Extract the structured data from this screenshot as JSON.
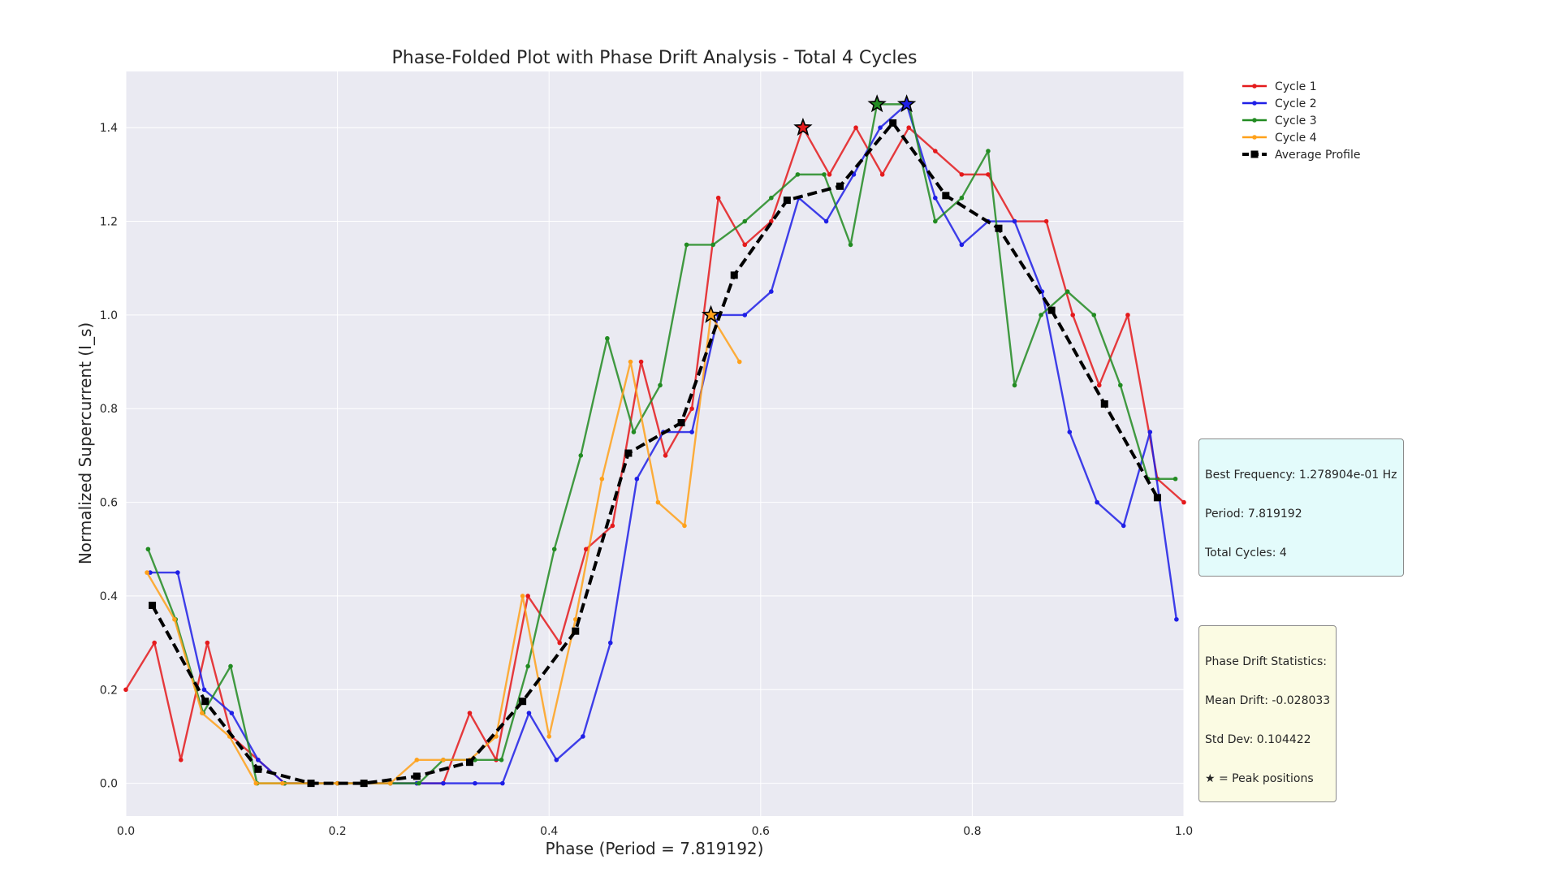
{
  "chart_data": {
    "type": "line",
    "title": "Phase-Folded Plot with Phase Drift Analysis - Total 4 Cycles",
    "xlabel": "Phase (Period = 7.819192)",
    "ylabel": "Normalized Supercurrent (I_s)",
    "xlim": [
      0.0,
      1.0
    ],
    "ylim": [
      -0.07,
      1.52
    ],
    "xticks": [
      0.0,
      0.2,
      0.4,
      0.6,
      0.8,
      1.0
    ],
    "xtick_labels": [
      "0.0",
      "0.2",
      "0.4",
      "0.6",
      "0.8",
      "1.0"
    ],
    "yticks": [
      0.0,
      0.2,
      0.4,
      0.6,
      0.8,
      1.0,
      1.2,
      1.4
    ],
    "ytick_labels": [
      "0.0",
      "0.2",
      "0.4",
      "0.6",
      "0.8",
      "1.0",
      "1.2",
      "1.4"
    ],
    "grid": true,
    "legend_position": "top-right, outside plot",
    "series": [
      {
        "name": "Cycle 1",
        "color": "#e41a1c",
        "style": "solid-dot",
        "x": [
          0.0,
          0.027,
          0.052,
          0.077,
          0.1,
          0.125,
          0.15,
          0.175,
          0.2,
          0.225,
          0.25,
          0.275,
          0.3,
          0.325,
          0.35,
          0.38,
          0.41,
          0.435,
          0.46,
          0.487,
          0.51,
          0.535,
          0.56,
          0.585,
          0.61,
          0.64,
          0.665,
          0.69,
          0.715,
          0.74,
          0.765,
          0.79,
          0.815,
          0.84,
          0.87,
          0.895,
          0.92,
          0.947,
          0.975,
          1.0
        ],
        "y": [
          0.2,
          0.3,
          0.05,
          0.3,
          0.1,
          0.05,
          0.0,
          0.0,
          0.0,
          0.0,
          0.0,
          0.0,
          0.0,
          0.15,
          0.05,
          0.4,
          0.3,
          0.5,
          0.55,
          0.9,
          0.7,
          0.8,
          1.25,
          1.15,
          1.2,
          1.4,
          1.3,
          1.4,
          1.3,
          1.4,
          1.35,
          1.3,
          1.3,
          1.2,
          1.2,
          1.0,
          0.85,
          1.0,
          0.65,
          0.6
        ]
      },
      {
        "name": "Cycle 2",
        "color": "#1f1fe6",
        "style": "solid-dot",
        "x": [
          0.023,
          0.049,
          0.074,
          0.1,
          0.125,
          0.15,
          0.175,
          0.2,
          0.225,
          0.25,
          0.275,
          0.3,
          0.33,
          0.356,
          0.381,
          0.407,
          0.432,
          0.458,
          0.483,
          0.508,
          0.535,
          0.56,
          0.585,
          0.61,
          0.636,
          0.662,
          0.688,
          0.713,
          0.738,
          0.765,
          0.79,
          0.815,
          0.84,
          0.866,
          0.892,
          0.918,
          0.943,
          0.968,
          0.993
        ],
        "y": [
          0.45,
          0.45,
          0.2,
          0.15,
          0.05,
          0.0,
          0.0,
          0.0,
          0.0,
          0.0,
          0.0,
          0.0,
          0.0,
          0.0,
          0.15,
          0.05,
          0.1,
          0.3,
          0.65,
          0.75,
          0.75,
          1.0,
          1.0,
          1.05,
          1.25,
          1.2,
          1.3,
          1.4,
          1.45,
          1.25,
          1.15,
          1.2,
          1.2,
          1.05,
          0.75,
          0.6,
          0.55,
          0.75,
          0.35
        ]
      },
      {
        "name": "Cycle 3",
        "color": "#228b22",
        "style": "solid-dot",
        "x": [
          0.021,
          0.047,
          0.073,
          0.099,
          0.124,
          0.15,
          0.176,
          0.2,
          0.225,
          0.25,
          0.277,
          0.3,
          0.33,
          0.355,
          0.38,
          0.405,
          0.43,
          0.455,
          0.48,
          0.505,
          0.53,
          0.555,
          0.585,
          0.61,
          0.635,
          0.66,
          0.685,
          0.71,
          0.74,
          0.765,
          0.79,
          0.815,
          0.84,
          0.865,
          0.89,
          0.915,
          0.94,
          0.966,
          0.992
        ],
        "y": [
          0.5,
          0.35,
          0.15,
          0.25,
          0.0,
          0.0,
          0.0,
          0.0,
          0.0,
          0.0,
          0.0,
          0.05,
          0.05,
          0.05,
          0.25,
          0.5,
          0.7,
          0.95,
          0.75,
          0.85,
          1.15,
          1.15,
          1.2,
          1.25,
          1.3,
          1.3,
          1.15,
          1.45,
          1.45,
          1.2,
          1.25,
          1.35,
          0.85,
          1.0,
          1.05,
          1.0,
          0.85,
          0.65,
          0.65
        ]
      },
      {
        "name": "Cycle 4",
        "color": "#ffa11a",
        "style": "solid-dot",
        "x": [
          0.02,
          0.046,
          0.072,
          0.098,
          0.123,
          0.148,
          0.173,
          0.2,
          0.225,
          0.25,
          0.275,
          0.3,
          0.325,
          0.35,
          0.375,
          0.4,
          0.425,
          0.45,
          0.477,
          0.503,
          0.528,
          0.553,
          0.58
        ],
        "y": [
          0.45,
          0.35,
          0.15,
          0.1,
          0.0,
          0.0,
          0.0,
          0.0,
          0.0,
          0.0,
          0.05,
          0.05,
          0.05,
          0.1,
          0.4,
          0.1,
          0.35,
          0.65,
          0.9,
          0.6,
          0.55,
          1.0,
          0.9
        ]
      },
      {
        "name": "Average Profile",
        "color": "#000000",
        "style": "dashed-square",
        "x": [
          0.025,
          0.075,
          0.125,
          0.175,
          0.225,
          0.275,
          0.325,
          0.375,
          0.425,
          0.475,
          0.525,
          0.575,
          0.625,
          0.675,
          0.725,
          0.775,
          0.825,
          0.875,
          0.925,
          0.975
        ],
        "y": [
          0.38,
          0.175,
          0.03,
          0.0,
          0.0,
          0.015,
          0.045,
          0.175,
          0.325,
          0.705,
          0.77,
          1.085,
          1.245,
          1.275,
          1.41,
          1.255,
          1.185,
          1.01,
          0.81,
          0.61
        ]
      }
    ],
    "peaks": [
      {
        "series": "Cycle 1",
        "x": 0.64,
        "y": 1.4
      },
      {
        "series": "Cycle 2",
        "x": 0.738,
        "y": 1.45
      },
      {
        "series": "Cycle 3",
        "x": 0.71,
        "y": 1.45
      },
      {
        "series": "Cycle 4",
        "x": 0.553,
        "y": 1.0
      }
    ]
  },
  "info": {
    "frequency_box": [
      "Best Frequency: 1.278904e-01 Hz",
      "Period: 7.819192",
      "Total Cycles: 4"
    ],
    "drift_box": [
      "Phase Drift Statistics:",
      "Mean Drift: -0.028033",
      "Std Dev: 0.104422",
      "★ = Peak positions"
    ]
  }
}
